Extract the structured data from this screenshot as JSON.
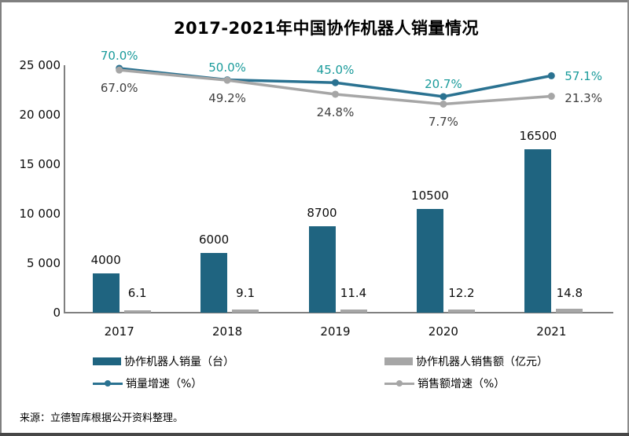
{
  "title": "2017-2021年中国协作机器人销量情况",
  "source": "来源：立德智库根据公开资料整理。",
  "colors": {
    "bar_primary": "#1F6480",
    "bar_secondary": "#A6A6A6",
    "line_primary": "#2A7291",
    "line_secondary": "#A6A6A6",
    "pct_label_primary": "#1A9B9B",
    "pct_label_secondary": "#3F3F3F",
    "axis": "#808080",
    "text": "#000000"
  },
  "chart_data": {
    "type": "bar",
    "subtype": "combo-bar-line",
    "title": "2017-2021年中国协作机器人销量情况",
    "categories": [
      "2017",
      "2018",
      "2019",
      "2020",
      "2021"
    ],
    "series": [
      {
        "name": "协作机器人销量（台）",
        "type": "bar",
        "values": [
          4000,
          6000,
          8700,
          10500,
          16500
        ],
        "labels": [
          "4000",
          "6000",
          "8700",
          "10500",
          "16500"
        ]
      },
      {
        "name": "协作机器人销售额（亿元）",
        "type": "bar",
        "values": [
          6.1,
          9.1,
          11.4,
          12.2,
          14.8
        ],
        "labels": [
          "6.1",
          "9.1",
          "11.4",
          "12.2",
          "14.8"
        ]
      },
      {
        "name": "销量增速（%）",
        "type": "line",
        "values": [
          70.0,
          50.0,
          45.0,
          20.7,
          57.1
        ],
        "labels": [
          "70.0%",
          "50.0%",
          "45.0%",
          "20.7%",
          "57.1%"
        ]
      },
      {
        "name": "销售额增速（%）",
        "type": "line",
        "values": [
          67.0,
          49.2,
          24.8,
          7.7,
          21.3
        ],
        "labels": [
          "67.0%",
          "49.2%",
          "24.8%",
          "7.7%",
          "21.3%"
        ]
      }
    ],
    "y_axis": {
      "min": 0,
      "max": 25000,
      "tick_labels": [
        "0",
        "5 000",
        "10 000",
        "15 000",
        "20 000",
        "25 000"
      ]
    },
    "grid": "off",
    "legend_position": "bottom"
  }
}
